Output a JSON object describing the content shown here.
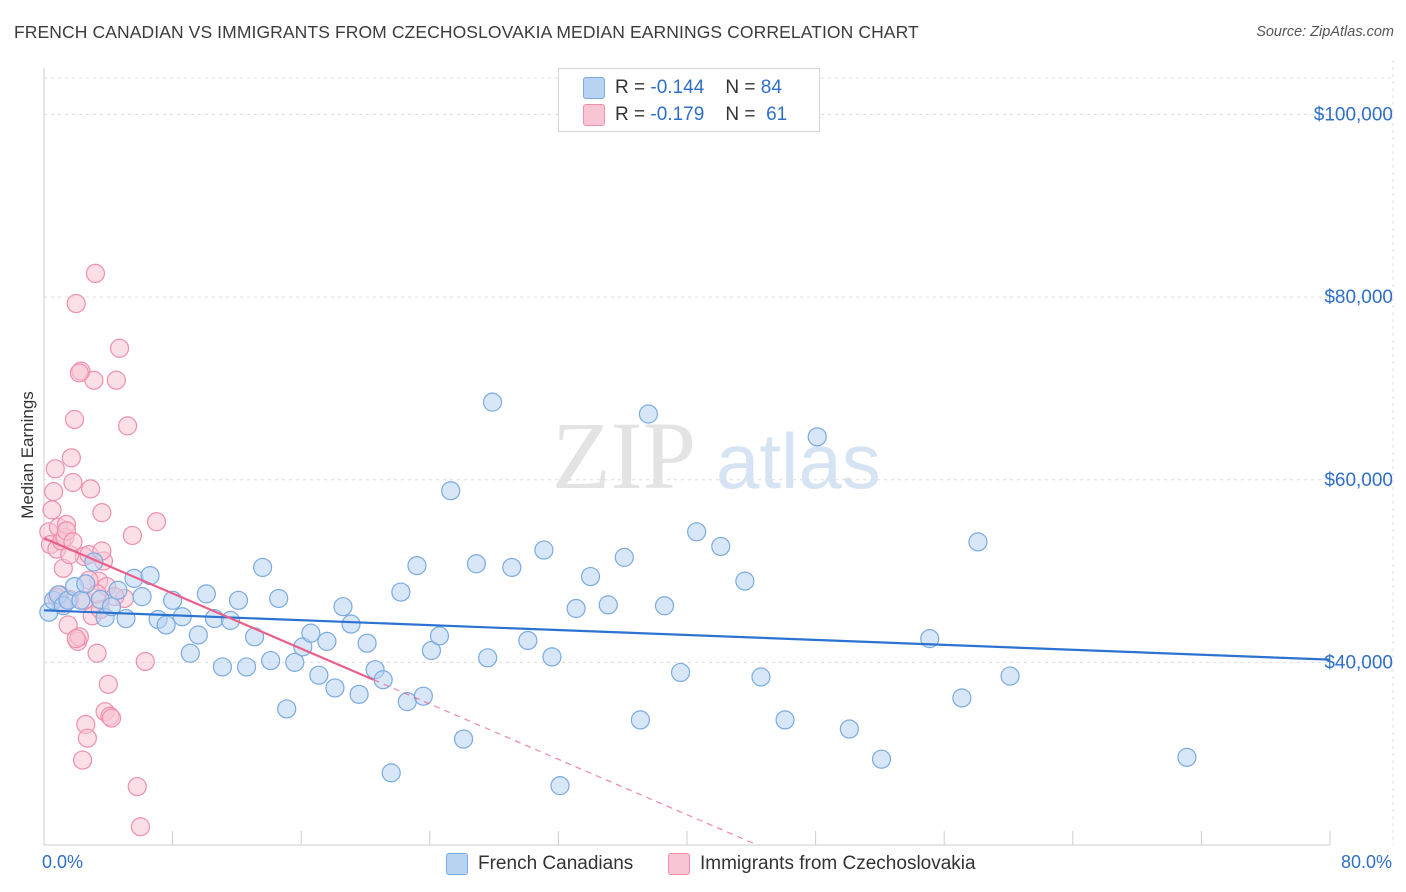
{
  "title": "FRENCH CANADIAN VS IMMIGRANTS FROM CZECHOSLOVAKIA MEDIAN EARNINGS CORRELATION CHART",
  "source": "Source: ZipAtlas.com",
  "watermark": {
    "zip": "ZIP",
    "atlas": "atlas"
  },
  "colors": {
    "blue_fill": "#b8d3f2",
    "blue_stroke": "#7aaae0",
    "blue_line": "#2c72d0",
    "pink_fill": "#f8c5d4",
    "pink_stroke": "#ee8fac",
    "pink_line": "#e8608a",
    "axis_text": "#2e6fc9",
    "grid": "#dddddd"
  },
  "legend": {
    "rows": [
      {
        "r_label": "R =",
        "r_value": "-0.144",
        "n_label": "N =",
        "n_value": "84"
      },
      {
        "r_label": "R =",
        "r_value": "-0.179",
        "n_label": "N =",
        "n_value": "61"
      }
    ],
    "series_names": [
      "French Canadians",
      "Immigrants from Czechoslovakia"
    ]
  },
  "chart_data": {
    "type": "scatter",
    "title": "FRENCH CANADIAN VS IMMIGRANTS FROM CZECHOSLOVAKIA MEDIAN EARNINGS CORRELATION CHART",
    "xlabel": "",
    "ylabel": "Median Earnings",
    "xlim": [
      0,
      80
    ],
    "ylim": [
      20000,
      104000
    ],
    "x_tick_labels": [
      "0.0%",
      "80.0%"
    ],
    "y_ticks": [
      {
        "value": 40000,
        "label": "$40,000"
      },
      {
        "value": 60000,
        "label": "$60,000"
      },
      {
        "value": 80000,
        "label": "$80,000"
      },
      {
        "value": 100000,
        "label": "$100,000"
      }
    ],
    "grid": true,
    "series": [
      {
        "name": "French Canadians",
        "R": -0.144,
        "N": 84,
        "trend": {
          "x0": 0,
          "y0": 45700,
          "x1": 80,
          "y1": 40300
        },
        "points": [
          [
            0.3,
            45500
          ],
          [
            0.6,
            46800
          ],
          [
            0.9,
            47400
          ],
          [
            1.2,
            46200
          ],
          [
            1.5,
            46800
          ],
          [
            1.9,
            48300
          ],
          [
            2.3,
            46800
          ],
          [
            2.6,
            48600
          ],
          [
            3.1,
            51000
          ],
          [
            3.5,
            46900
          ],
          [
            3.8,
            44900
          ],
          [
            4.2,
            46100
          ],
          [
            4.6,
            47900
          ],
          [
            5.1,
            44800
          ],
          [
            5.6,
            49200
          ],
          [
            6.1,
            47200
          ],
          [
            6.6,
            49500
          ],
          [
            7.1,
            44700
          ],
          [
            7.6,
            44100
          ],
          [
            8.0,
            46800
          ],
          [
            8.6,
            45000
          ],
          [
            9.1,
            41000
          ],
          [
            9.6,
            43000
          ],
          [
            10.1,
            47500
          ],
          [
            10.6,
            44800
          ],
          [
            11.1,
            39500
          ],
          [
            11.6,
            44600
          ],
          [
            12.1,
            46800
          ],
          [
            12.6,
            39500
          ],
          [
            13.1,
            42800
          ],
          [
            13.6,
            50400
          ],
          [
            14.1,
            40200
          ],
          [
            14.6,
            47000
          ],
          [
            15.1,
            34900
          ],
          [
            15.6,
            40000
          ],
          [
            16.1,
            41700
          ],
          [
            16.6,
            43200
          ],
          [
            17.1,
            38600
          ],
          [
            17.6,
            42300
          ],
          [
            18.1,
            37200
          ],
          [
            18.6,
            46100
          ],
          [
            19.1,
            44200
          ],
          [
            19.6,
            36500
          ],
          [
            20.1,
            42100
          ],
          [
            20.6,
            39200
          ],
          [
            21.1,
            38100
          ],
          [
            21.6,
            27900
          ],
          [
            22.2,
            47700
          ],
          [
            22.6,
            35700
          ],
          [
            23.2,
            50600
          ],
          [
            23.6,
            36300
          ],
          [
            24.1,
            41300
          ],
          [
            24.6,
            42900
          ],
          [
            25.3,
            58800
          ],
          [
            26.1,
            31600
          ],
          [
            26.9,
            50800
          ],
          [
            27.6,
            40500
          ],
          [
            27.9,
            68500
          ],
          [
            29.1,
            50400
          ],
          [
            30.1,
            42400
          ],
          [
            31.1,
            52300
          ],
          [
            31.6,
            40600
          ],
          [
            32.1,
            26500
          ],
          [
            33.1,
            45900
          ],
          [
            34.0,
            49400
          ],
          [
            35.1,
            46300
          ],
          [
            36.1,
            51500
          ],
          [
            37.1,
            33700
          ],
          [
            37.6,
            67200
          ],
          [
            38.6,
            46200
          ],
          [
            39.6,
            38900
          ],
          [
            40.6,
            54300
          ],
          [
            42.1,
            52700
          ],
          [
            43.6,
            48900
          ],
          [
            44.6,
            38400
          ],
          [
            46.1,
            33700
          ],
          [
            48.1,
            64700
          ],
          [
            50.1,
            32700
          ],
          [
            52.1,
            29400
          ],
          [
            55.1,
            42600
          ],
          [
            57.1,
            36100
          ],
          [
            58.1,
            53200
          ],
          [
            60.1,
            38500
          ],
          [
            71.1,
            29600
          ]
        ]
      },
      {
        "name": "Immigrants from Czechoslovakia",
        "R": -0.179,
        "N": 61,
        "trend": {
          "x0": 0,
          "y0": 53600,
          "x1": 20.5,
          "y1": 38100
        },
        "trend_dashed": {
          "x0": 20.5,
          "y0": 38100,
          "x1": 80,
          "y1": -7000
        },
        "points": [
          [
            0.3,
            54300
          ],
          [
            0.4,
            52900
          ],
          [
            0.5,
            56700
          ],
          [
            0.6,
            58700
          ],
          [
            0.7,
            61200
          ],
          [
            0.8,
            52400
          ],
          [
            0.9,
            54800
          ],
          [
            1.0,
            47400
          ],
          [
            1.1,
            53300
          ],
          [
            1.2,
            50300
          ],
          [
            1.3,
            53700
          ],
          [
            1.4,
            55100
          ],
          [
            1.5,
            44100
          ],
          [
            1.6,
            46900
          ],
          [
            1.7,
            62400
          ],
          [
            1.8,
            59700
          ],
          [
            1.9,
            66600
          ],
          [
            2.0,
            79300
          ],
          [
            2.1,
            42300
          ],
          [
            2.2,
            42800
          ],
          [
            2.3,
            71900
          ],
          [
            2.4,
            29300
          ],
          [
            2.5,
            51600
          ],
          [
            2.6,
            33200
          ],
          [
            2.7,
            31700
          ],
          [
            2.8,
            51800
          ],
          [
            2.9,
            59000
          ],
          [
            3.0,
            45100
          ],
          [
            3.1,
            70900
          ],
          [
            3.2,
            82600
          ],
          [
            3.3,
            41000
          ],
          [
            3.4,
            48900
          ],
          [
            3.5,
            45800
          ],
          [
            3.6,
            56400
          ],
          [
            3.7,
            51100
          ],
          [
            3.8,
            34600
          ],
          [
            3.9,
            48300
          ],
          [
            4.0,
            37600
          ],
          [
            4.1,
            34100
          ],
          [
            4.2,
            33900
          ],
          [
            4.5,
            70900
          ],
          [
            4.7,
            74400
          ],
          [
            5.0,
            47000
          ],
          [
            5.2,
            65900
          ],
          [
            5.5,
            53900
          ],
          [
            5.8,
            26400
          ],
          [
            6.0,
            22000
          ],
          [
            6.3,
            40100
          ],
          [
            7.0,
            55400
          ],
          [
            0.8,
            47100
          ],
          [
            1.1,
            46400
          ],
          [
            1.4,
            54400
          ],
          [
            1.6,
            51800
          ],
          [
            1.8,
            53200
          ],
          [
            2.0,
            42600
          ],
          [
            2.2,
            71700
          ],
          [
            2.5,
            46800
          ],
          [
            2.8,
            49000
          ],
          [
            3.3,
            47500
          ],
          [
            3.6,
            52200
          ],
          [
            4.4,
            47200
          ]
        ]
      }
    ]
  }
}
